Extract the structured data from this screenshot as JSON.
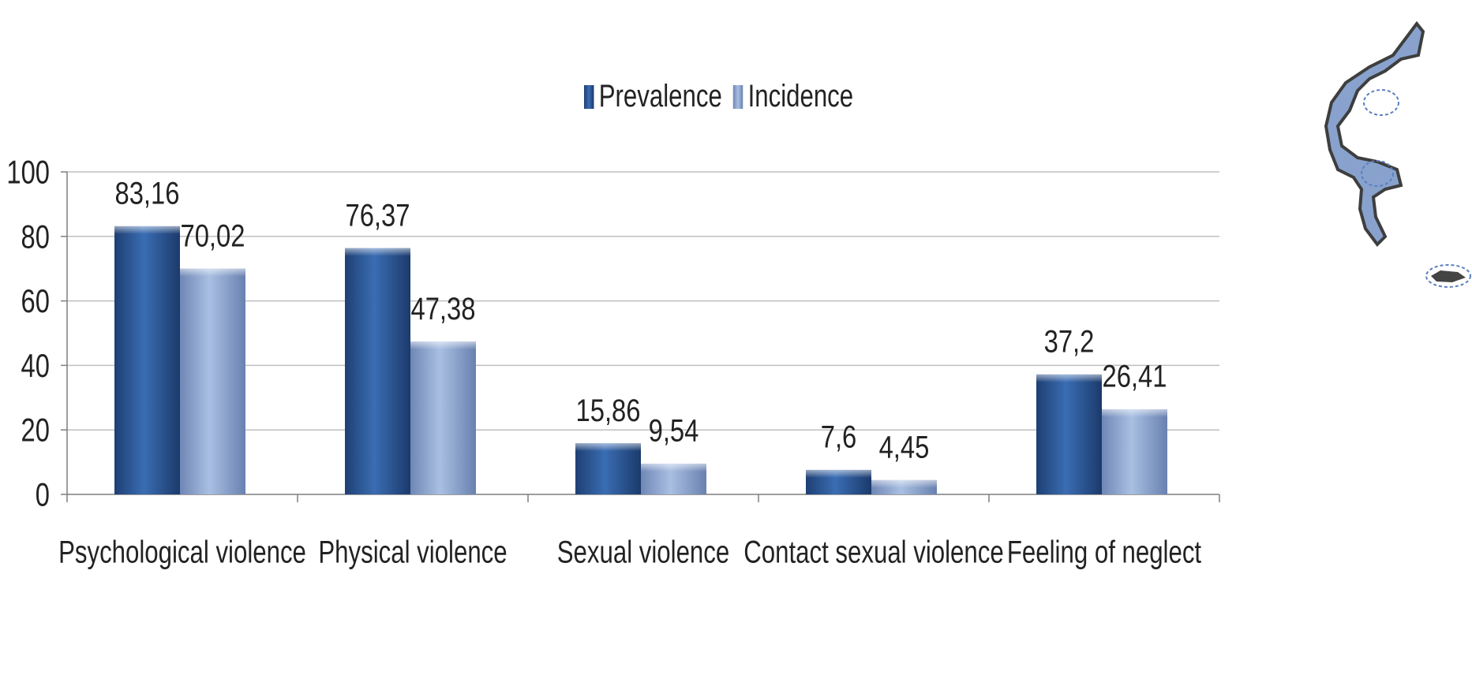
{
  "colors": {
    "prevalence": "#2f5f9e",
    "incidence": "#8ea7cf",
    "grid": "#bfbfbf",
    "axis": "#7f7f7f",
    "text": "#222222"
  },
  "legend": [
    {
      "name": "Prevalence",
      "color": "#2f5f9e"
    },
    {
      "name": "Incidence",
      "color": "#8ea7cf"
    }
  ],
  "map_decoration": {
    "icon": "greece-map-icon"
  },
  "chart_data": {
    "type": "bar",
    "title": "",
    "xlabel": "",
    "ylabel": "",
    "ylim": [
      0,
      100
    ],
    "yticks": [
      "0",
      "20",
      "40",
      "60",
      "80",
      "100"
    ],
    "grid": true,
    "legend_position": "top-center",
    "categories": [
      "Psychological violence",
      "Physical violence",
      "Sexual violence",
      "Contact sexual violence",
      "Feeling of neglect"
    ],
    "series": [
      {
        "name": "Prevalence",
        "values": [
          83.16,
          76.37,
          15.86,
          7.6,
          37.2
        ],
        "labels": [
          "83,16",
          "76,37",
          "15,86",
          "7,6",
          "37,2"
        ]
      },
      {
        "name": "Incidence",
        "values": [
          70.02,
          47.38,
          9.54,
          4.45,
          26.41
        ],
        "labels": [
          "70,02",
          "47,38",
          "9,54",
          "4,45",
          "26,41"
        ]
      }
    ]
  }
}
